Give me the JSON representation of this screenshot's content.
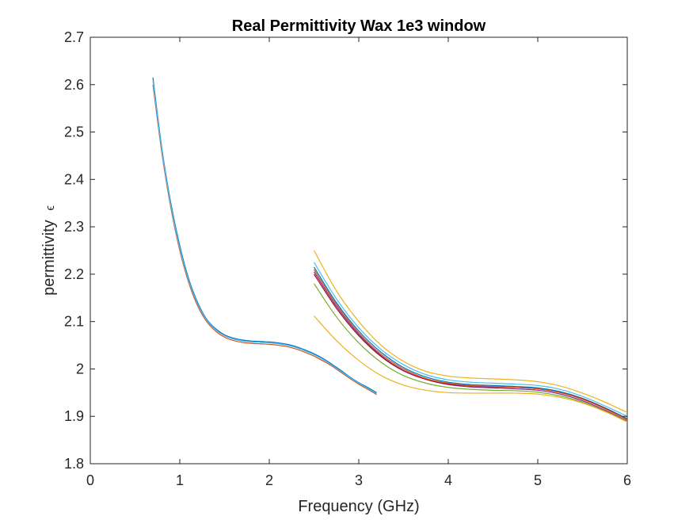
{
  "chart_data": {
    "type": "line",
    "title": "Real Permittivity Wax 1e3 window",
    "xlabel": "Frequency (GHz)",
    "ylabel": "permittivity",
    "ylabel_symbol": "ϵ",
    "xlim": [
      0,
      6
    ],
    "ylim": [
      1.8,
      2.7
    ],
    "xticks": [
      0,
      1,
      2,
      3,
      4,
      5,
      6
    ],
    "xtick_labels": [
      "0",
      "1",
      "2",
      "3",
      "4",
      "5",
      "6"
    ],
    "yticks": [
      1.8,
      1.9,
      2.0,
      2.1,
      2.2,
      2.3,
      2.4,
      2.5,
      2.6,
      2.7
    ],
    "ytick_labels": [
      "1.8",
      "1.9",
      "2",
      "2.1",
      "2.2",
      "2.3",
      "2.4",
      "2.5",
      "2.6",
      "2.7"
    ],
    "grid": false,
    "legend": "none",
    "series_colors": [
      "#0072BD",
      "#D95319",
      "#EDB120",
      "#7E2F8E",
      "#77AC30",
      "#4DBEEE",
      "#A2142F"
    ],
    "series_groups": [
      {
        "band": "low",
        "color": "#0072BD",
        "x": [
          0.7,
          0.8,
          0.9,
          1.0,
          1.1,
          1.2,
          1.3,
          1.4,
          1.5,
          1.6,
          1.7,
          1.8,
          1.9,
          2.0,
          2.1,
          2.2,
          2.3,
          2.4,
          2.5,
          2.6,
          2.7,
          2.8,
          2.9,
          3.0,
          3.1,
          3.2
        ],
        "y": [
          2.615,
          2.465,
          2.35,
          2.26,
          2.19,
          2.14,
          2.105,
          2.085,
          2.072,
          2.065,
          2.061,
          2.059,
          2.058,
          2.057,
          2.055,
          2.052,
          2.047,
          2.04,
          2.032,
          2.022,
          2.01,
          1.997,
          1.983,
          1.971,
          1.961,
          1.95
        ]
      },
      {
        "band": "low",
        "color": "#D95319",
        "x": [
          0.7,
          0.8,
          0.9,
          1.0,
          1.1,
          1.2,
          1.3,
          1.4,
          1.5,
          1.6,
          1.7,
          1.8,
          1.9,
          2.0,
          2.1,
          2.2,
          2.3,
          2.4,
          2.5,
          2.6,
          2.7,
          2.8,
          2.9,
          3.0,
          3.1,
          3.2
        ],
        "y": [
          2.6,
          2.455,
          2.34,
          2.25,
          2.182,
          2.133,
          2.1,
          2.08,
          2.067,
          2.06,
          2.056,
          2.054,
          2.053,
          2.052,
          2.05,
          2.047,
          2.042,
          2.035,
          2.027,
          2.017,
          2.006,
          1.993,
          1.98,
          1.968,
          1.957,
          1.946
        ]
      },
      {
        "band": "low",
        "color": "#4DBEEE",
        "x": [
          0.7,
          0.8,
          0.9,
          1.0,
          1.1,
          1.2,
          1.3,
          1.4,
          1.5,
          1.6,
          1.7,
          1.8,
          1.9,
          2.0,
          2.1,
          2.2,
          2.3,
          2.4,
          2.5,
          2.6,
          2.7,
          2.8,
          2.9,
          3.0,
          3.1,
          3.2
        ],
        "y": [
          2.608,
          2.46,
          2.345,
          2.255,
          2.186,
          2.137,
          2.103,
          2.083,
          2.07,
          2.063,
          2.059,
          2.057,
          2.056,
          2.055,
          2.053,
          2.05,
          2.045,
          2.038,
          2.03,
          2.02,
          2.008,
          1.995,
          1.982,
          1.97,
          1.959,
          1.948
        ]
      },
      {
        "band": "high",
        "color": "#EDB120",
        "x": [
          2.5,
          2.75,
          3.0,
          3.25,
          3.5,
          3.75,
          4.0,
          4.25,
          4.5,
          4.75,
          5.0,
          5.25,
          5.5,
          5.75,
          6.0
        ],
        "y": [
          2.25,
          2.165,
          2.1,
          2.05,
          2.016,
          1.995,
          1.985,
          1.981,
          1.979,
          1.977,
          1.973,
          1.964,
          1.949,
          1.93,
          1.908
        ]
      },
      {
        "band": "high",
        "color": "#0072BD",
        "x": [
          2.5,
          2.75,
          3.0,
          3.25,
          3.5,
          3.75,
          4.0,
          4.25,
          4.5,
          4.75,
          5.0,
          5.25,
          5.5,
          5.75,
          6.0
        ],
        "y": [
          2.215,
          2.14,
          2.08,
          2.035,
          2.003,
          1.983,
          1.972,
          1.967,
          1.965,
          1.963,
          1.96,
          1.952,
          1.938,
          1.918,
          1.895
        ]
      },
      {
        "band": "high",
        "color": "#7E2F8E",
        "x": [
          2.5,
          2.75,
          3.0,
          3.25,
          3.5,
          3.75,
          4.0,
          4.25,
          4.5,
          4.75,
          5.0,
          5.25,
          5.5,
          5.75,
          6.0
        ],
        "y": [
          2.205,
          2.132,
          2.073,
          2.028,
          1.997,
          1.978,
          1.967,
          1.962,
          1.96,
          1.958,
          1.955,
          1.947,
          1.933,
          1.913,
          1.89
        ]
      },
      {
        "band": "high",
        "color": "#A2142F",
        "x": [
          2.5,
          2.75,
          3.0,
          3.25,
          3.5,
          3.75,
          4.0,
          4.25,
          4.5,
          4.75,
          5.0,
          5.25,
          5.5,
          5.75,
          6.0
        ],
        "y": [
          2.2,
          2.128,
          2.07,
          2.026,
          1.996,
          1.978,
          1.968,
          1.964,
          1.962,
          1.961,
          1.958,
          1.95,
          1.937,
          1.917,
          1.893
        ]
      },
      {
        "band": "high",
        "color": "#4DBEEE",
        "x": [
          2.5,
          2.75,
          3.0,
          3.25,
          3.5,
          3.75,
          4.0,
          4.25,
          4.5,
          4.75,
          5.0,
          5.25,
          5.5,
          5.75,
          6.0
        ],
        "y": [
          2.225,
          2.148,
          2.087,
          2.041,
          2.009,
          1.988,
          1.977,
          1.972,
          1.97,
          1.968,
          1.965,
          1.957,
          1.942,
          1.922,
          1.9
        ]
      },
      {
        "band": "high",
        "color": "#D95319",
        "x": [
          2.5,
          2.75,
          3.0,
          3.25,
          3.5,
          3.75,
          4.0,
          4.25,
          4.5,
          4.75,
          5.0,
          5.25,
          5.5,
          5.75,
          6.0
        ],
        "y": [
          2.21,
          2.136,
          2.076,
          2.031,
          2.0,
          1.98,
          1.97,
          1.965,
          1.963,
          1.961,
          1.958,
          1.95,
          1.936,
          1.916,
          1.893
        ]
      },
      {
        "band": "high",
        "color": "#77AC30",
        "x": [
          2.5,
          2.75,
          3.0,
          3.25,
          3.5,
          3.75,
          4.0,
          4.25,
          4.5,
          4.75,
          5.0,
          5.25,
          5.5,
          5.75,
          6.0
        ],
        "y": [
          2.18,
          2.11,
          2.055,
          2.014,
          1.986,
          1.97,
          1.961,
          1.957,
          1.955,
          1.954,
          1.951,
          1.943,
          1.93,
          1.911,
          1.889
        ]
      },
      {
        "band": "high",
        "color": "#EDB120",
        "x": [
          2.5,
          2.75,
          3.0,
          3.25,
          3.5,
          3.75,
          4.0,
          4.25,
          4.5,
          4.75,
          5.0,
          5.25,
          5.5,
          5.75,
          6.0
        ],
        "y": [
          2.112,
          2.06,
          2.018,
          1.986,
          1.966,
          1.955,
          1.95,
          1.949,
          1.949,
          1.949,
          1.947,
          1.94,
          1.928,
          1.91,
          1.888
        ]
      }
    ]
  }
}
